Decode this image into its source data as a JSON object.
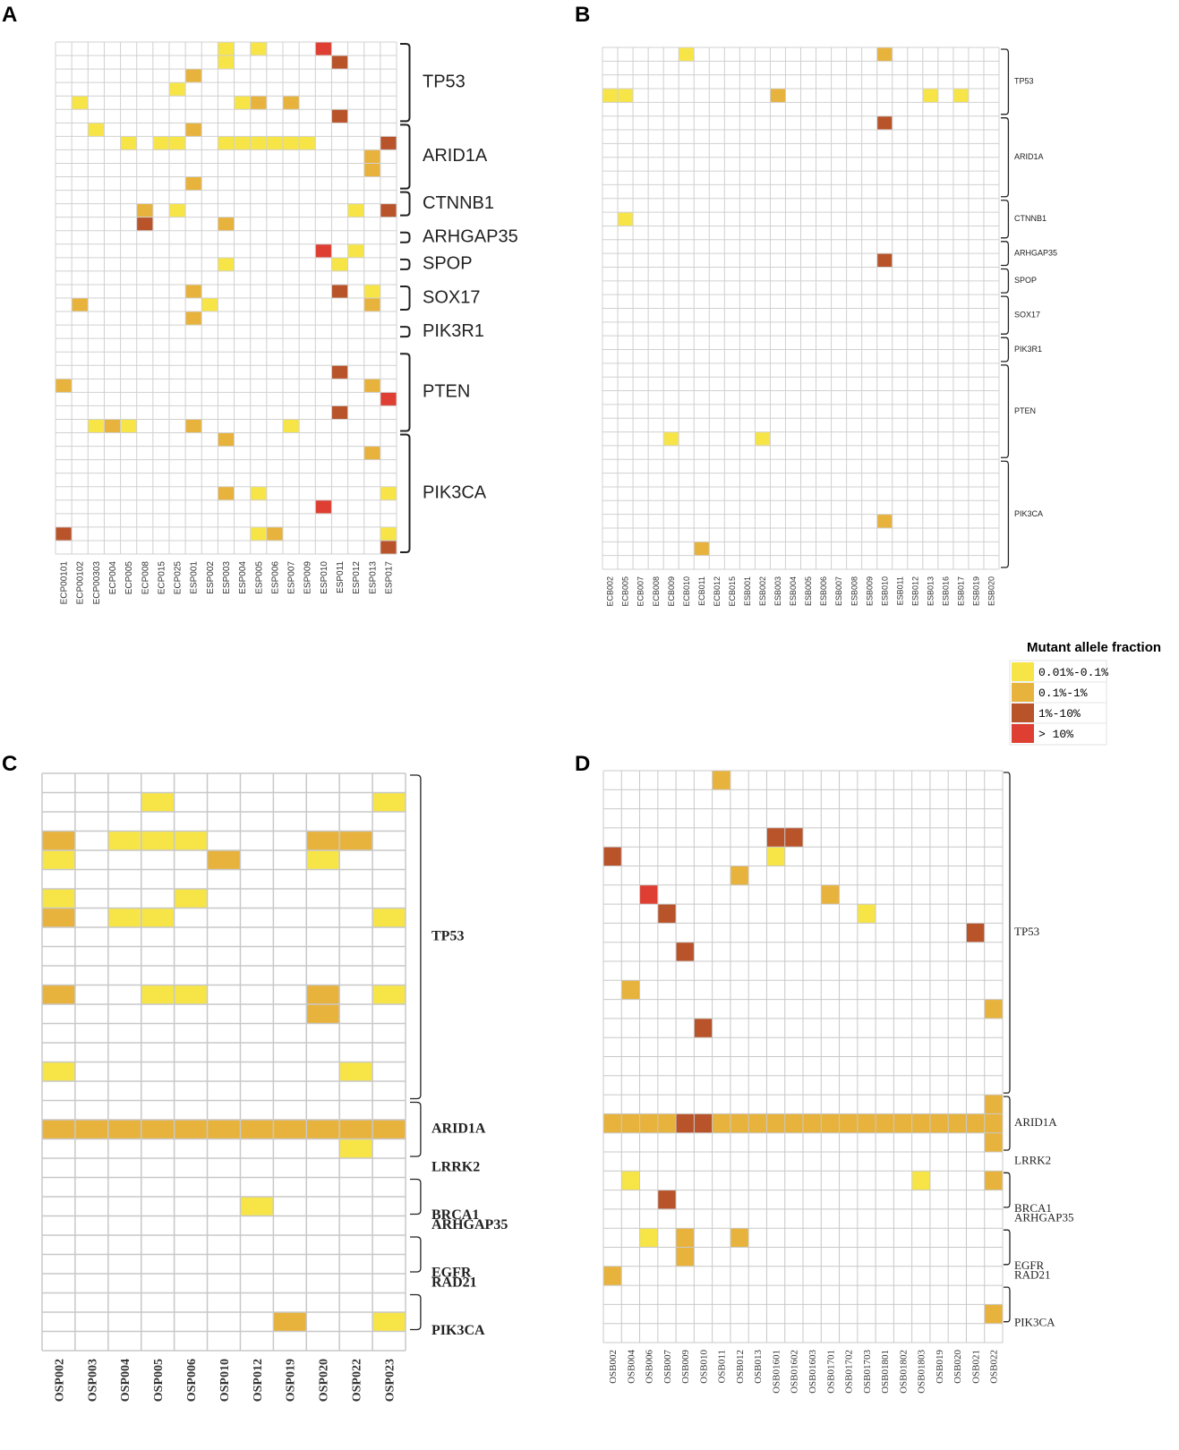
{
  "legend": {
    "title": "Mutant allele fraction",
    "items": [
      {
        "label": "0.01%-0.1%",
        "color": "#f7e548"
      },
      {
        "label": "0.1%-1%",
        "color": "#e8b33c"
      },
      {
        "label": "1%-10%",
        "color": "#b9532a"
      },
      {
        "label": "> 10%",
        "color": "#de3f32"
      }
    ]
  },
  "chart_data": [
    {
      "type": "heatmap",
      "panel": "A",
      "columns": [
        "ECP00101",
        "ECP00102",
        "ECP00303",
        "ECP004",
        "ECP005",
        "ECP008",
        "ECP015",
        "ECP025",
        "ESP001",
        "ESP002",
        "ESP003",
        "ESP004",
        "ESP005",
        "ESP006",
        "ESP007",
        "ESP009",
        "ESP010",
        "ESP011",
        "ESP012",
        "ESP013",
        "ESP017"
      ],
      "n_rows": 38,
      "genes": [
        {
          "name": "TP53",
          "start": 0,
          "end": 5
        },
        {
          "name": "ARID1A",
          "start": 6,
          "end": 10
        },
        {
          "name": "CTNNB1",
          "start": 11,
          "end": 12
        },
        {
          "name": "ARHGAP35",
          "start": 14,
          "end": 14
        },
        {
          "name": "SPOP",
          "start": 16,
          "end": 16
        },
        {
          "name": "SOX17",
          "start": 18,
          "end": 19
        },
        {
          "name": "PIK3R1",
          "start": 21,
          "end": 21
        },
        {
          "name": "PTEN",
          "start": 23,
          "end": 28
        },
        {
          "name": "PIK3CA",
          "start": 29,
          "end": 37
        }
      ],
      "cells": [
        [
          0,
          10,
          1
        ],
        [
          1,
          10,
          1
        ],
        [
          0,
          12,
          1
        ],
        [
          0,
          16,
          4
        ],
        [
          1,
          17,
          3
        ],
        [
          2,
          8,
          2
        ],
        [
          3,
          7,
          1
        ],
        [
          4,
          1,
          1
        ],
        [
          4,
          11,
          1
        ],
        [
          4,
          12,
          2
        ],
        [
          4,
          14,
          2
        ],
        [
          5,
          17,
          3
        ],
        [
          6,
          2,
          1
        ],
        [
          6,
          8,
          2
        ],
        [
          7,
          4,
          1
        ],
        [
          7,
          6,
          1
        ],
        [
          7,
          7,
          1
        ],
        [
          7,
          10,
          1
        ],
        [
          7,
          11,
          1
        ],
        [
          7,
          12,
          1
        ],
        [
          7,
          13,
          1
        ],
        [
          7,
          14,
          1
        ],
        [
          7,
          15,
          1
        ],
        [
          7,
          20,
          3
        ],
        [
          8,
          19,
          2
        ],
        [
          9,
          19,
          2
        ],
        [
          10,
          8,
          2
        ],
        [
          12,
          5,
          2
        ],
        [
          12,
          7,
          1
        ],
        [
          12,
          18,
          1
        ],
        [
          12,
          20,
          3
        ],
        [
          13,
          5,
          3
        ],
        [
          13,
          10,
          2
        ],
        [
          15,
          16,
          4
        ],
        [
          15,
          18,
          1
        ],
        [
          16,
          10,
          1
        ],
        [
          16,
          17,
          1
        ],
        [
          18,
          8,
          2
        ],
        [
          18,
          17,
          3
        ],
        [
          18,
          19,
          1
        ],
        [
          19,
          1,
          2
        ],
        [
          19,
          9,
          1
        ],
        [
          19,
          19,
          2
        ],
        [
          20,
          8,
          2
        ],
        [
          24,
          17,
          3
        ],
        [
          25,
          0,
          2
        ],
        [
          25,
          19,
          2
        ],
        [
          26,
          20,
          4
        ],
        [
          27,
          17,
          3
        ],
        [
          28,
          2,
          1
        ],
        [
          28,
          3,
          2
        ],
        [
          28,
          4,
          1
        ],
        [
          28,
          8,
          2
        ],
        [
          28,
          14,
          1
        ],
        [
          29,
          10,
          2
        ],
        [
          30,
          19,
          2
        ],
        [
          33,
          10,
          2
        ],
        [
          33,
          12,
          1
        ],
        [
          33,
          20,
          1
        ],
        [
          34,
          16,
          4
        ],
        [
          36,
          0,
          3
        ],
        [
          36,
          12,
          1
        ],
        [
          36,
          13,
          2
        ],
        [
          36,
          20,
          1
        ],
        [
          37,
          20,
          3
        ]
      ]
    },
    {
      "type": "heatmap",
      "panel": "B",
      "columns": [
        "ECB002",
        "ECB005",
        "ECB007",
        "ECB008",
        "ECB009",
        "ECB010",
        "ECB011",
        "ECB012",
        "ECB015",
        "ESB001",
        "ESB002",
        "ESB003",
        "ESB004",
        "ESB005",
        "ESB006",
        "ESB007",
        "ESB008",
        "ESB009",
        "ESB010",
        "ESB011",
        "ESB012",
        "ESB013",
        "ESB016",
        "ESB017",
        "ESB019",
        "ESB020"
      ],
      "n_rows": 38,
      "genes": [
        {
          "name": "TP53",
          "start": 0,
          "end": 4
        },
        {
          "name": "ARID1A",
          "start": 5,
          "end": 10
        },
        {
          "name": "CTNNB1",
          "start": 11,
          "end": 13
        },
        {
          "name": "ARHGAP35",
          "start": 14,
          "end": 15
        },
        {
          "name": "SPOP",
          "start": 16,
          "end": 17
        },
        {
          "name": "SOX17",
          "start": 18,
          "end": 20
        },
        {
          "name": "PIK3R1",
          "start": 21,
          "end": 22
        },
        {
          "name": "PTEN",
          "start": 23,
          "end": 29
        },
        {
          "name": "PIK3CA",
          "start": 30,
          "end": 37
        }
      ],
      "cells": [
        [
          0,
          5,
          1
        ],
        [
          0,
          18,
          2
        ],
        [
          3,
          0,
          1
        ],
        [
          3,
          1,
          1
        ],
        [
          3,
          11,
          2
        ],
        [
          3,
          21,
          1
        ],
        [
          3,
          23,
          1
        ],
        [
          5,
          18,
          3
        ],
        [
          12,
          1,
          1
        ],
        [
          15,
          18,
          3
        ],
        [
          28,
          4,
          1
        ],
        [
          28,
          10,
          1
        ],
        [
          34,
          18,
          2
        ],
        [
          36,
          6,
          2
        ]
      ]
    },
    {
      "type": "heatmap",
      "panel": "C",
      "columns": [
        "OSP002",
        "OSP003",
        "OSP004",
        "OSP005",
        "OSP006",
        "OSP010",
        "OSP012",
        "OSP019",
        "OSP020",
        "OSP022",
        "OSP023"
      ],
      "n_rows": 30,
      "genes": [
        {
          "name": "TP53",
          "start": 0,
          "end": 16
        },
        {
          "name": "ARID1A",
          "start": 17,
          "end": 19
        },
        {
          "name": "LRRK2",
          "start": 20,
          "end": 20
        },
        {
          "name": "BRCA1",
          "start": 21,
          "end": 22
        },
        {
          "name": "ARHGAP35",
          "start": 23,
          "end": 23
        },
        {
          "name": "EGFR",
          "start": 24,
          "end": 25
        },
        {
          "name": "RAD21",
          "start": 26,
          "end": 26
        },
        {
          "name": "PIK3CA",
          "start": 27,
          "end": 28
        }
      ],
      "cells": [
        [
          1,
          3,
          1
        ],
        [
          1,
          10,
          1
        ],
        [
          3,
          0,
          2
        ],
        [
          3,
          2,
          1
        ],
        [
          3,
          3,
          1
        ],
        [
          3,
          4,
          1
        ],
        [
          3,
          8,
          2
        ],
        [
          3,
          9,
          2
        ],
        [
          4,
          0,
          1
        ],
        [
          4,
          5,
          2
        ],
        [
          4,
          8,
          1
        ],
        [
          6,
          0,
          1
        ],
        [
          6,
          4,
          1
        ],
        [
          7,
          0,
          2
        ],
        [
          7,
          2,
          1
        ],
        [
          7,
          3,
          1
        ],
        [
          7,
          10,
          1
        ],
        [
          11,
          0,
          2
        ],
        [
          11,
          3,
          1
        ],
        [
          11,
          4,
          1
        ],
        [
          11,
          8,
          2
        ],
        [
          11,
          10,
          1
        ],
        [
          12,
          8,
          2
        ],
        [
          15,
          0,
          1
        ],
        [
          15,
          9,
          1
        ],
        [
          18,
          0,
          2
        ],
        [
          18,
          1,
          2
        ],
        [
          18,
          2,
          2
        ],
        [
          18,
          3,
          2
        ],
        [
          18,
          4,
          2
        ],
        [
          18,
          5,
          2
        ],
        [
          18,
          6,
          2
        ],
        [
          18,
          7,
          2
        ],
        [
          18,
          8,
          2
        ],
        [
          18,
          9,
          2
        ],
        [
          18,
          10,
          2
        ],
        [
          19,
          9,
          1
        ],
        [
          22,
          6,
          1
        ],
        [
          28,
          7,
          2
        ],
        [
          28,
          10,
          1
        ]
      ]
    },
    {
      "type": "heatmap",
      "panel": "D",
      "columns": [
        "OSB002",
        "OSB004",
        "OSB006",
        "OSB007",
        "OSB009",
        "OSB010",
        "OSB011",
        "OSB012",
        "OSB013",
        "OSB01601",
        "OSB01602",
        "OSB01603",
        "OSB01701",
        "OSB01702",
        "OSB01703",
        "OSB01801",
        "OSB01802",
        "OSB01803",
        "OSB019",
        "OSB020",
        "OSB021",
        "OSB022"
      ],
      "n_rows": 30,
      "genes": [
        {
          "name": "TP53",
          "start": 0,
          "end": 16
        },
        {
          "name": "ARID1A",
          "start": 17,
          "end": 19
        },
        {
          "name": "LRRK2",
          "start": 20,
          "end": 20
        },
        {
          "name": "BRCA1",
          "start": 21,
          "end": 22
        },
        {
          "name": "ARHGAP35",
          "start": 23,
          "end": 23
        },
        {
          "name": "EGFR",
          "start": 24,
          "end": 25
        },
        {
          "name": "RAD21",
          "start": 26,
          "end": 26
        },
        {
          "name": "PIK3CA",
          "start": 27,
          "end": 28
        }
      ],
      "cells": [
        [
          0,
          6,
          2
        ],
        [
          3,
          9,
          3
        ],
        [
          3,
          10,
          3
        ],
        [
          4,
          0,
          3
        ],
        [
          4,
          9,
          1
        ],
        [
          5,
          7,
          2
        ],
        [
          6,
          2,
          4
        ],
        [
          6,
          12,
          2
        ],
        [
          7,
          3,
          3
        ],
        [
          7,
          14,
          1
        ],
        [
          8,
          20,
          3
        ],
        [
          9,
          4,
          3
        ],
        [
          11,
          1,
          2
        ],
        [
          12,
          21,
          2
        ],
        [
          13,
          5,
          3
        ],
        [
          17,
          21,
          2
        ],
        [
          18,
          0,
          2
        ],
        [
          18,
          1,
          2
        ],
        [
          18,
          2,
          2
        ],
        [
          18,
          3,
          2
        ],
        [
          18,
          4,
          3
        ],
        [
          18,
          5,
          3
        ],
        [
          18,
          6,
          2
        ],
        [
          18,
          7,
          2
        ],
        [
          18,
          8,
          2
        ],
        [
          18,
          9,
          2
        ],
        [
          18,
          10,
          2
        ],
        [
          18,
          11,
          2
        ],
        [
          18,
          12,
          2
        ],
        [
          18,
          13,
          2
        ],
        [
          18,
          14,
          2
        ],
        [
          18,
          15,
          2
        ],
        [
          18,
          16,
          2
        ],
        [
          18,
          17,
          2
        ],
        [
          18,
          18,
          2
        ],
        [
          18,
          19,
          2
        ],
        [
          18,
          20,
          2
        ],
        [
          18,
          21,
          2
        ],
        [
          19,
          21,
          2
        ],
        [
          21,
          1,
          1
        ],
        [
          21,
          17,
          1
        ],
        [
          21,
          21,
          2
        ],
        [
          22,
          3,
          3
        ],
        [
          24,
          2,
          1
        ],
        [
          24,
          4,
          2
        ],
        [
          24,
          7,
          2
        ],
        [
          25,
          4,
          2
        ],
        [
          26,
          0,
          2
        ],
        [
          28,
          21,
          2
        ]
      ]
    }
  ]
}
